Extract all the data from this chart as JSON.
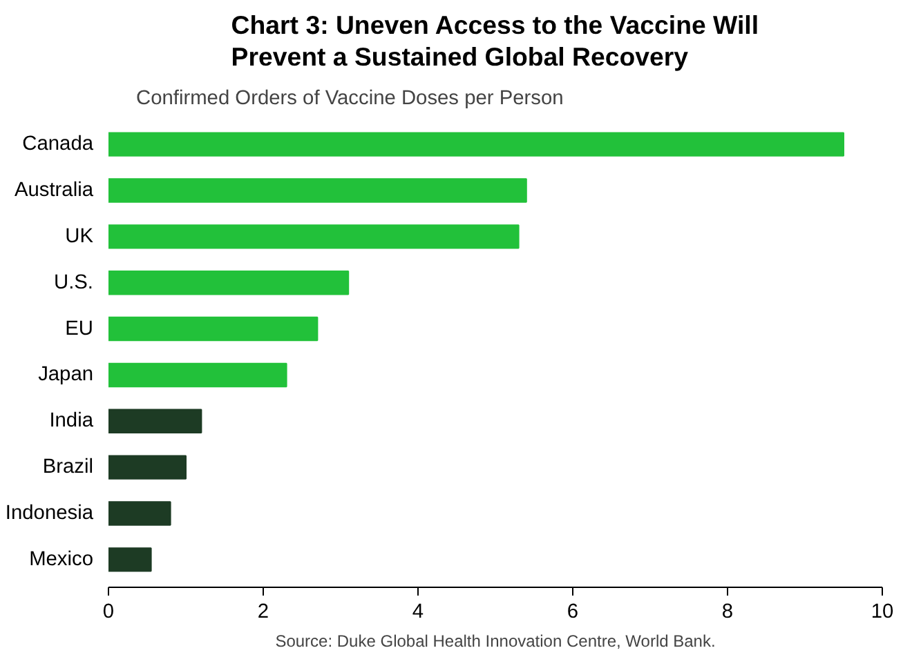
{
  "chart_data": {
    "type": "bar",
    "orientation": "horizontal",
    "title": "Chart 3: Uneven Access to the Vaccine Will Prevent a Sustained Global Recovery",
    "subtitle": "Confirmed Orders of Vaccine Doses per Person",
    "categories": [
      "Canada",
      "Australia",
      "UK",
      "U.S.",
      "EU",
      "Japan",
      "India",
      "Brazil",
      "Indonesia",
      "Mexico"
    ],
    "values": [
      9.5,
      5.4,
      5.3,
      3.1,
      2.7,
      2.3,
      1.2,
      1.0,
      0.8,
      0.55
    ],
    "colors": [
      "#22c13a",
      "#22c13a",
      "#22c13a",
      "#22c13a",
      "#22c13a",
      "#22c13a",
      "#1d3b24",
      "#1d3b24",
      "#1d3b24",
      "#1d3b24"
    ],
    "xlim": [
      0,
      10
    ],
    "xticks": [
      0,
      2,
      4,
      6,
      8,
      10
    ],
    "grid": false,
    "annotations": [
      "Source: Duke Global Health Innovation Centre, World Bank."
    ]
  }
}
